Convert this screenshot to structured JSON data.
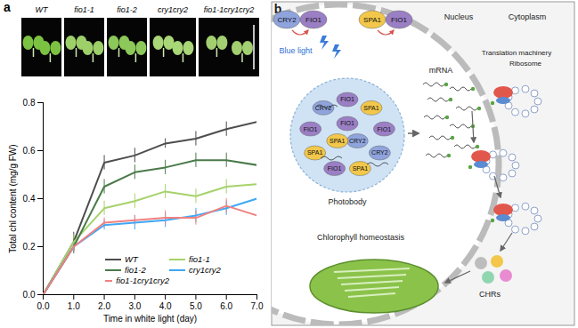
{
  "chart_data": {
    "type": "line",
    "x": [
      0,
      1,
      2,
      3,
      4,
      5,
      6,
      7
    ],
    "xlim": [
      0,
      7
    ],
    "xticks": [
      0,
      1,
      2,
      3,
      4,
      5,
      6,
      7
    ],
    "ylim": [
      0,
      0.8
    ],
    "yticks": [
      0,
      0.2,
      0.4,
      0.6,
      0.8
    ],
    "x_label": "Time in white light (day)",
    "y_label": "Total chl content (mg/g FW)",
    "legend": "bottom-right",
    "series": [
      {
        "name": "WT",
        "color": "#4d4d4d",
        "values": [
          0,
          0.22,
          0.55,
          0.58,
          0.63,
          0.65,
          0.69,
          0.72
        ],
        "errors": [
          0,
          0.04,
          0.03,
          0.03,
          0.02,
          0.03,
          0.03,
          0.03
        ]
      },
      {
        "name": "fio1-1",
        "color": "#a6d26b",
        "values": [
          0,
          0.22,
          0.36,
          0.39,
          0.43,
          0.41,
          0.45,
          0.46
        ],
        "errors": [
          0,
          0.03,
          0.03,
          0.03,
          0.03,
          0.03,
          0.03,
          0.03
        ]
      },
      {
        "name": "fio1-2",
        "color": "#4a7a4a",
        "values": [
          0,
          0.2,
          0.45,
          0.51,
          0.53,
          0.56,
          0.56,
          0.54
        ],
        "errors": [
          0,
          0.03,
          0.03,
          0.03,
          0.03,
          0.03,
          0.03,
          0.03
        ]
      },
      {
        "name": "cry1cry2",
        "color": "#3fa9f5",
        "values": [
          0,
          0.2,
          0.29,
          0.3,
          0.31,
          0.33,
          0.36,
          0.4
        ],
        "errors": [
          0,
          0.02,
          0.02,
          0.03,
          0.03,
          0.03,
          0.03,
          0.03
        ]
      },
      {
        "name": "fio1-1cry1cry2",
        "color": "#f08080",
        "values": [
          0,
          0.2,
          0.3,
          0.31,
          0.32,
          0.32,
          0.37,
          0.33
        ],
        "errors": [
          0,
          0.02,
          0.02,
          0.02,
          0.03,
          0.03,
          0.03,
          0.02
        ]
      }
    ]
  },
  "panel_a": {
    "panel_label": "a",
    "photo_labels": [
      "WT",
      "fio1-1",
      "fio1-2",
      "cry1cry2",
      "fio1-1cry1cry2"
    ]
  },
  "panel_b": {
    "panel_label": "b",
    "nucleus": "Nucleus",
    "cytoplasm": "Cytoplasm",
    "pairs": [
      [
        "CRY2",
        "FIO1"
      ],
      [
        "SPA1",
        "FIO1"
      ]
    ],
    "blue_light": "Blue light",
    "photobody": "Photobody",
    "photobody_proteins": [
      "FIO1",
      "SPA1",
      "FIO1",
      "CRY2",
      "SPA1",
      "FIO1",
      "SPA1",
      "FIO1",
      "CRY2",
      "CRY2",
      "SPA1",
      "FIO1"
    ],
    "mrna": "mRNA",
    "translation_machinery": "Translation machinery",
    "ribosome": "Ribosome",
    "chlorophyll_homeostasis": "Chlorophyll homeostasis",
    "chrs": "CHRs"
  }
}
